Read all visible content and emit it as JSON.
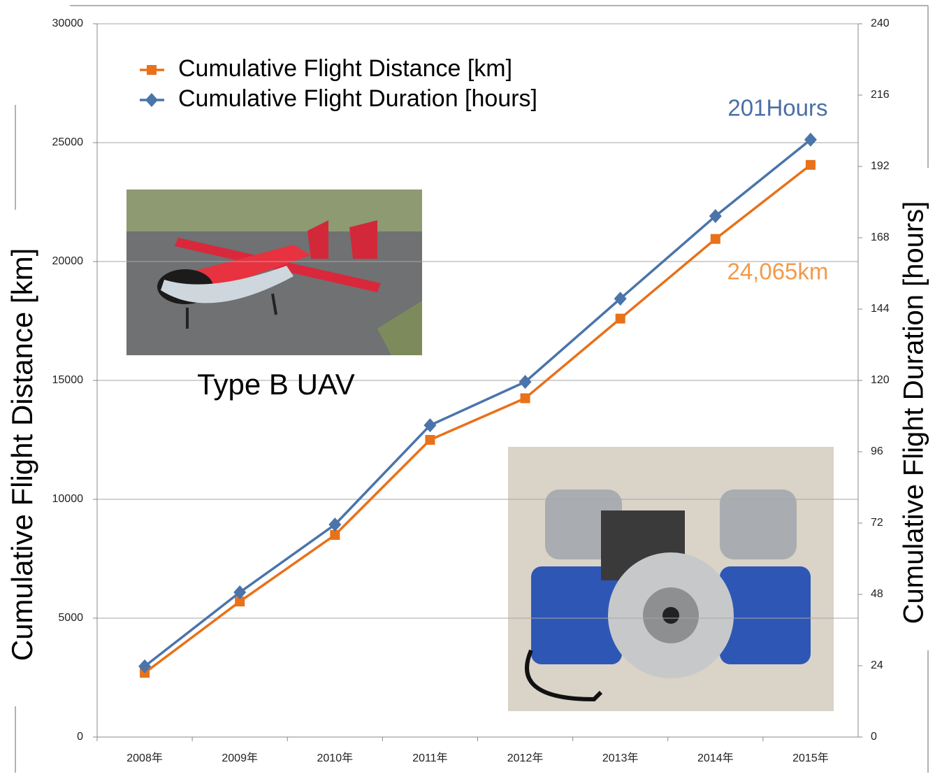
{
  "chart_data": {
    "type": "line",
    "categories": [
      "2008年",
      "2009年",
      "2010年",
      "2011年",
      "2012年",
      "2013年",
      "2014年",
      "2015年"
    ],
    "series": [
      {
        "name": "Cumulative Flight Distance [km]",
        "color": "#e8711a",
        "marker": "square",
        "values": [
          2700,
          5700,
          8500,
          12500,
          14250,
          17600,
          20950,
          24065
        ],
        "value_labels": [
          null,
          null,
          null,
          null,
          null,
          null,
          null,
          "24,065km"
        ],
        "label_color": "#f29a4a"
      },
      {
        "name": "Cumulative Flight Duration [hours]",
        "color": "#4a74aa",
        "marker": "diamond",
        "axis": "y2",
        "values": [
          23.8,
          48.7,
          71.5,
          104.9,
          119.5,
          147.5,
          175.3,
          201
        ],
        "value_labels": [
          null,
          null,
          null,
          null,
          null,
          null,
          null,
          "201Hours"
        ],
        "label_color": "#4a6fa5"
      }
    ],
    "ylabel": "Cumulative Flight Distance [km]",
    "y2label": "Cumulative Flight Duration [hours]",
    "ylim": [
      0,
      30000
    ],
    "yticks": [
      0,
      5000,
      10000,
      15000,
      20000,
      25000,
      30000
    ],
    "y2lim": [
      0,
      240
    ],
    "y2ticks": [
      0,
      24,
      48,
      72,
      96,
      120,
      144,
      168,
      192,
      216,
      240
    ],
    "grid": true,
    "legend": "upper left",
    "annotations": [
      "Type B UAV"
    ]
  }
}
